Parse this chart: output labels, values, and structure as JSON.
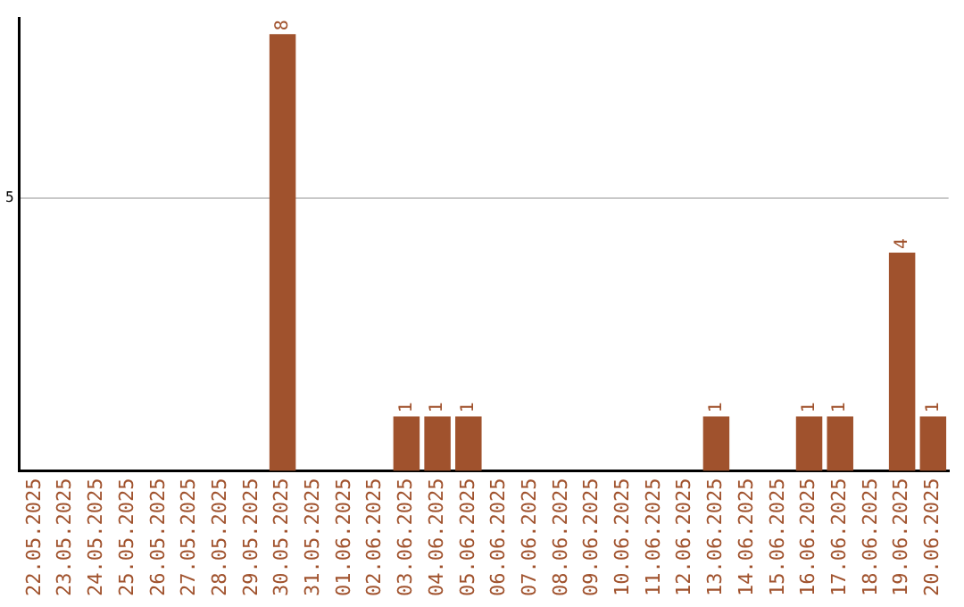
{
  "chart_data": {
    "type": "bar",
    "categories": [
      "22.05.2025",
      "23.05.2025",
      "24.05.2025",
      "25.05.2025",
      "26.05.2025",
      "27.05.2025",
      "28.05.2025",
      "29.05.2025",
      "30.05.2025",
      "31.05.2025",
      "01.06.2025",
      "02.06.2025",
      "03.06.2025",
      "04.06.2025",
      "05.06.2025",
      "06.06.2025",
      "07.06.2025",
      "08.06.2025",
      "09.06.2025",
      "10.06.2025",
      "11.06.2025",
      "12.06.2025",
      "13.06.2025",
      "14.06.2025",
      "15.06.2025",
      "16.06.2025",
      "17.06.2025",
      "18.06.2025",
      "19.06.2025",
      "20.06.2025"
    ],
    "values": [
      0,
      0,
      0,
      0,
      0,
      0,
      0,
      0,
      8,
      0,
      0,
      0,
      1,
      1,
      1,
      0,
      0,
      0,
      0,
      0,
      0,
      0,
      1,
      0,
      0,
      1,
      1,
      0,
      4,
      1
    ],
    "value_labels": [
      null,
      null,
      null,
      null,
      null,
      null,
      null,
      null,
      "8",
      null,
      null,
      null,
      "1",
      "1",
      "1",
      null,
      null,
      null,
      null,
      null,
      null,
      null,
      "1",
      null,
      null,
      "1",
      "1",
      null,
      "4",
      "1"
    ],
    "color": "#a0522d",
    "ylim": [
      0,
      8.3
    ],
    "yticks": [
      5
    ],
    "grid": "y",
    "legend": false
  }
}
